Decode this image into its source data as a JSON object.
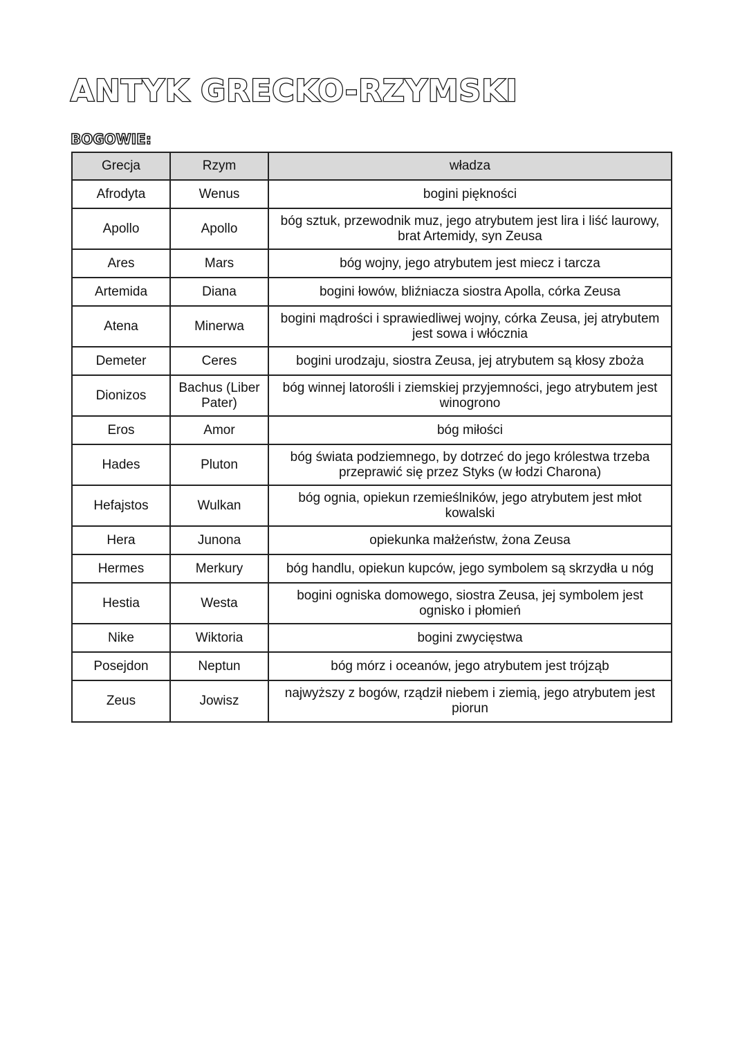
{
  "title": "ANTYK GRECKO-RZYMSKI",
  "subtitle": "BOGOWIE:",
  "table": {
    "headers": [
      "Grecja",
      "Rzym",
      "władza"
    ],
    "rows": [
      [
        "Afrodyta",
        "Wenus",
        "bogini piękności"
      ],
      [
        "Apollo",
        "Apollo",
        "bóg sztuk, przewodnik muz, jego atrybutem jest lira i liść laurowy, brat Artemidy, syn Zeusa"
      ],
      [
        "Ares",
        "Mars",
        "bóg wojny, jego atrybutem jest miecz i tarcza"
      ],
      [
        "Artemida",
        "Diana",
        "bogini łowów, bliźniacza siostra Apolla, córka Zeusa"
      ],
      [
        "Atena",
        "Minerwa",
        "bogini mądrości i sprawiedliwej wojny, córka Zeusa, jej atrybutem jest sowa i włócznia"
      ],
      [
        "Demeter",
        "Ceres",
        "bogini urodzaju, siostra Zeusa, jej atrybutem są kłosy zboża"
      ],
      [
        "Dionizos",
        "Bachus (Liber Pater)",
        "bóg winnej latorośli i ziemskiej przyjemności, jego atrybutem jest winogrono"
      ],
      [
        "Eros",
        "Amor",
        "bóg miłości"
      ],
      [
        "Hades",
        "Pluton",
        "bóg świata podziemnego, by dotrzeć do jego królestwa trzeba przeprawić się przez Styks (w łodzi Charona)"
      ],
      [
        "Hefajstos",
        "Wulkan",
        "bóg ognia, opiekun rzemieślników, jego atrybutem jest młot kowalski"
      ],
      [
        "Hera",
        "Junona",
        "opiekunka małżeństw, żona Zeusa"
      ],
      [
        "Hermes",
        "Merkury",
        "bóg handlu, opiekun kupców, jego symbolem są skrzydła u nóg"
      ],
      [
        "Hestia",
        "Westa",
        "bogini ogniska domowego, siostra Zeusa, jej symbolem jest ognisko i płomień"
      ],
      [
        "Nike",
        "Wiktoria",
        "bogini zwycięstwa"
      ],
      [
        "Posejdon",
        "Neptun",
        "bóg mórz i oceanów, jego atrybutem jest trójząb"
      ],
      [
        "Zeus",
        "Jowisz",
        "najwyższy z bogów, rządził niebem i ziemią, jego atrybutem jest piorun"
      ]
    ]
  }
}
